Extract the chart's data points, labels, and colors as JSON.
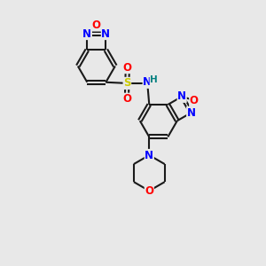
{
  "bg_color": "#e8e8e8",
  "bond_color": "#1a1a1a",
  "bond_width": 1.5,
  "atom_colors": {
    "N": "#0000ff",
    "O": "#ff0000",
    "S": "#cccc00",
    "H": "#008080",
    "C": "#1a1a1a"
  },
  "font_size": 8.5,
  "fig_size": [
    3.0,
    3.0
  ],
  "dpi": 100
}
